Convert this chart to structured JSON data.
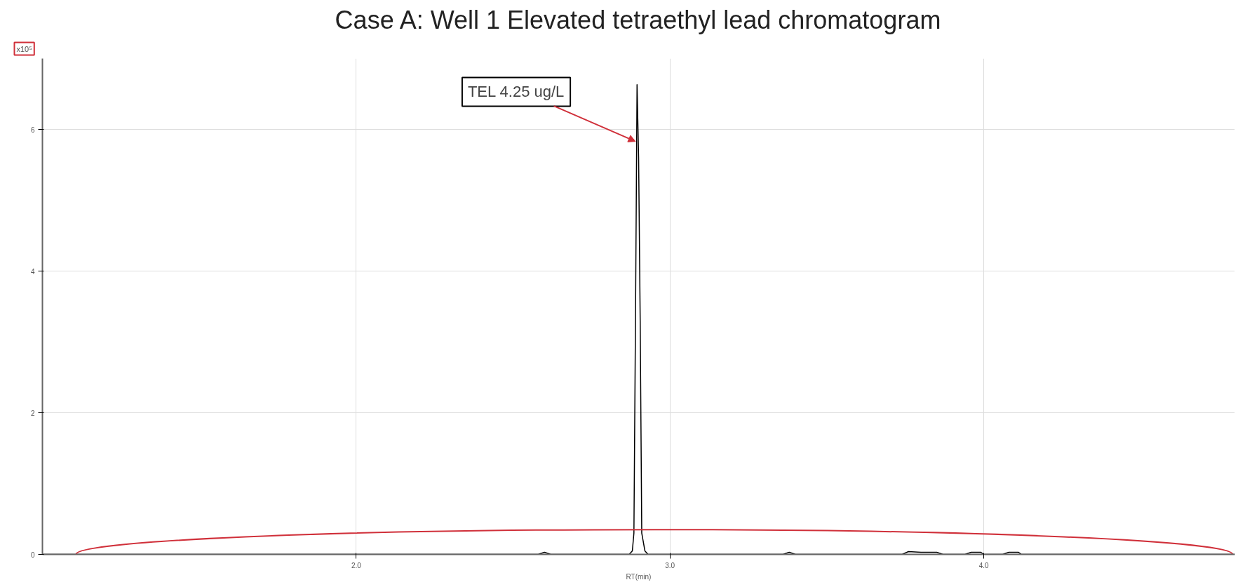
{
  "chart_data": {
    "type": "line",
    "title": "Case A: Well 1 Elevated tetraethyl lead chromatogram",
    "xlabel": "RT(min)",
    "ylabel": "x10⁵",
    "annotations": [
      {
        "text": "TEL 4.25 ug/L",
        "x": 2.89,
        "y": 5.83
      }
    ],
    "series": [
      {
        "color": "#000000",
        "x": [
          1.0,
          2.0,
          2.58,
          2.6,
          2.62,
          2.87,
          2.88,
          2.885,
          2.89,
          2.895,
          2.9,
          2.905,
          2.91,
          2.92,
          2.93,
          3.36,
          3.38,
          3.4,
          3.74,
          3.76,
          3.8,
          3.85,
          3.87,
          3.94,
          3.96,
          3.99,
          4.0,
          4.06,
          4.08,
          4.11,
          4.12,
          4.8
        ],
        "values": [
          0,
          0,
          0,
          0.03,
          0,
          0,
          0.05,
          0.3,
          3.3,
          6.63,
          5.6,
          3.3,
          0.3,
          0.05,
          0,
          0,
          0.03,
          0,
          0,
          0.04,
          0.03,
          0.03,
          0,
          0,
          0.03,
          0.03,
          0,
          0,
          0.03,
          0.03,
          0,
          0
        ]
      }
    ],
    "xlim": [
      1.0,
      4.8
    ],
    "ylim": [
      0,
      7.0
    ],
    "xticks": [
      {
        "value": 2.0,
        "label": "2.0"
      },
      {
        "value": 3.0,
        "label": "3.0"
      },
      {
        "value": 4.0,
        "label": "4.0"
      }
    ],
    "yticks": [
      0,
      2,
      4,
      6
    ],
    "grid": true,
    "marker": "none",
    "line_style": "solid"
  }
}
